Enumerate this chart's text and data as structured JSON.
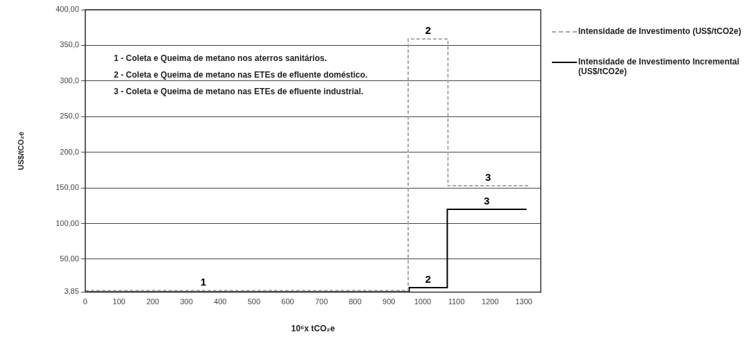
{
  "chart_data": {
    "type": "step",
    "xlabel": "10⁶x tCO₂e",
    "ylabel": "US$/tCO₂e",
    "xlim": [
      0,
      1350
    ],
    "xticks": [
      0,
      100,
      200,
      300,
      400,
      500,
      600,
      700,
      800,
      900,
      1000,
      1100,
      1200,
      1300
    ],
    "ylim": [
      3.85,
      400
    ],
    "yticks": [
      {
        "value": 3.85,
        "label": "3,85"
      },
      {
        "value": 50,
        "label": "50,00"
      },
      {
        "value": 100,
        "label": "100,00"
      },
      {
        "value": 150,
        "label": "150,00"
      },
      {
        "value": 200,
        "label": "200,0"
      },
      {
        "value": 250,
        "label": "250,0"
      },
      {
        "value": 300,
        "label": "300,0"
      },
      {
        "value": 350,
        "label": "350,0"
      },
      {
        "value": 400,
        "label": "400,00"
      }
    ],
    "grid": "y",
    "legend": "right",
    "marker": "none",
    "series": [
      {
        "name": "Intensidade de Investimento  (US$/tCO2e)",
        "color": "#a6a6a6",
        "line_style": "dashed",
        "x": [
          0,
          957,
          1075,
          1313
        ],
        "values": [
          6,
          359,
          153,
          153
        ]
      },
      {
        "name": "Intensidade de Investimento Incremental (US$/tCO2e)",
        "color": "#000000",
        "line_style": "solid",
        "x": [
          0,
          960,
          1073,
          1308
        ],
        "values": [
          4,
          10,
          120,
          120
        ]
      }
    ],
    "annotations": [
      "1 - Coleta e Queima de metano nos aterros sanitários.",
      "2 - Coleta e Queima de metano nas ETEs de efluente doméstico.",
      "3 - Coleta e Queima de metano nas ETEs de efluente industrial.",
      {
        "text": "1",
        "x": 350,
        "y": 6
      },
      {
        "text": "2",
        "x": 1016,
        "y": 359
      },
      {
        "text": "2",
        "x": 1016,
        "y": 10
      },
      {
        "text": "3",
        "x": 1194,
        "y": 153
      },
      {
        "text": "3",
        "x": 1190,
        "y": 120
      }
    ]
  }
}
